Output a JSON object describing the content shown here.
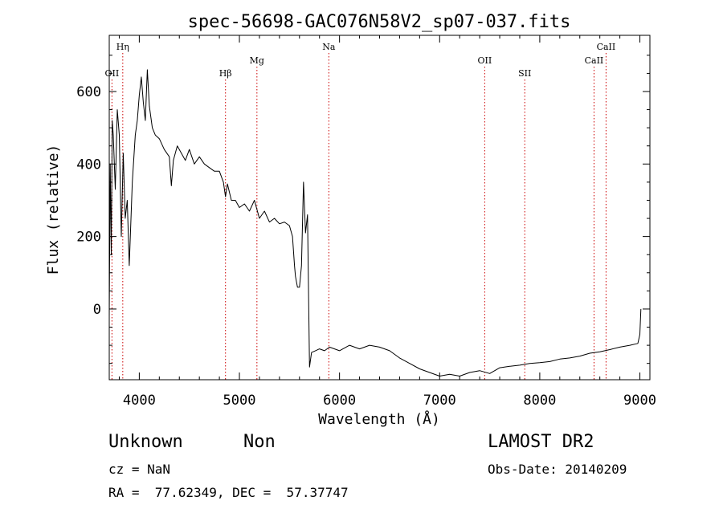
{
  "chart_data": {
    "type": "line",
    "title": "spec-56698-GAC076N58V2_sp07-037.fits",
    "xlabel": "Wavelength (Å)",
    "ylabel": "Flux (relative)",
    "xlim": [
      3700,
      9100
    ],
    "ylim": [
      -195,
      755
    ],
    "x_ticks": [
      4000,
      5000,
      6000,
      7000,
      8000,
      9000
    ],
    "x_tick_labels": [
      "4000",
      "5000",
      "6000",
      "7000",
      "8000",
      "9000"
    ],
    "y_ticks": [
      0,
      200,
      400,
      600
    ],
    "y_tick_labels": [
      "0",
      "200",
      "400",
      "600"
    ],
    "line_color": "#cc0000",
    "spectrum_color": "#000000",
    "spectral_lines": [
      {
        "label": "OII",
        "wavelength": 3727,
        "level": "low"
      },
      {
        "label": "Hη",
        "wavelength": 3835,
        "level": "high"
      },
      {
        "label": "Hβ",
        "wavelength": 4861,
        "level": "low"
      },
      {
        "label": "Mg",
        "wavelength": 5175,
        "level": "mid"
      },
      {
        "label": "Na",
        "wavelength": 5893,
        "level": "high"
      },
      {
        "label": "OII",
        "wavelength": 7450,
        "level": "mid"
      },
      {
        "label": "SII",
        "wavelength": 7850,
        "level": "low"
      },
      {
        "label": "CaII",
        "wavelength": 8542,
        "level": "mid"
      },
      {
        "label": "CaII",
        "wavelength": 8662,
        "level": "high"
      }
    ],
    "spectrum": {
      "wavelength": [
        3700,
        3710,
        3720,
        3730,
        3740,
        3760,
        3780,
        3800,
        3820,
        3840,
        3860,
        3880,
        3900,
        3930,
        3960,
        3980,
        4000,
        4020,
        4040,
        4060,
        4080,
        4100,
        4130,
        4160,
        4200,
        4250,
        4300,
        4320,
        4340,
        4380,
        4420,
        4460,
        4500,
        4550,
        4600,
        4650,
        4700,
        4750,
        4800,
        4840,
        4861,
        4880,
        4920,
        4960,
        5000,
        5050,
        5100,
        5150,
        5200,
        5250,
        5300,
        5350,
        5400,
        5450,
        5500,
        5530,
        5550,
        5560,
        5580,
        5600,
        5620,
        5640,
        5660,
        5680,
        5700,
        5720,
        5760,
        5800,
        5850,
        5900,
        5950,
        6000,
        6100,
        6200,
        6300,
        6400,
        6500,
        6600,
        6700,
        6800,
        6900,
        7000,
        7100,
        7200,
        7300,
        7400,
        7500,
        7600,
        7700,
        7800,
        7900,
        8000,
        8100,
        8200,
        8300,
        8400,
        8500,
        8600,
        8700,
        8800,
        8900,
        8980,
        9000,
        9010
      ],
      "flux": [
        -20,
        400,
        150,
        520,
        480,
        330,
        550,
        480,
        200,
        430,
        250,
        300,
        120,
        350,
        480,
        520,
        590,
        640,
        570,
        520,
        660,
        560,
        500,
        480,
        470,
        440,
        420,
        340,
        410,
        450,
        430,
        410,
        440,
        400,
        420,
        400,
        390,
        380,
        380,
        350,
        310,
        345,
        300,
        300,
        280,
        290,
        270,
        300,
        250,
        270,
        240,
        250,
        235,
        240,
        230,
        200,
        120,
        90,
        60,
        60,
        120,
        350,
        210,
        260,
        -160,
        -120,
        -115,
        -110,
        -115,
        -105,
        -110,
        -115,
        -100,
        -110,
        -100,
        -105,
        -115,
        -135,
        -150,
        -165,
        -175,
        -185,
        -180,
        -185,
        -175,
        -170,
        -178,
        -162,
        -158,
        -155,
        -150,
        -148,
        -145,
        -138,
        -135,
        -130,
        -122,
        -118,
        -112,
        -105,
        -100,
        -95,
        -70,
        0
      ]
    }
  },
  "info": {
    "object_class": "Unknown",
    "object_subclass": "Non",
    "survey": "LAMOST DR2",
    "redshift": "cz = NaN",
    "obs_date": "Obs-Date: 20140209",
    "coordinates": "RA =  77.62349, DEC =  57.37747"
  }
}
